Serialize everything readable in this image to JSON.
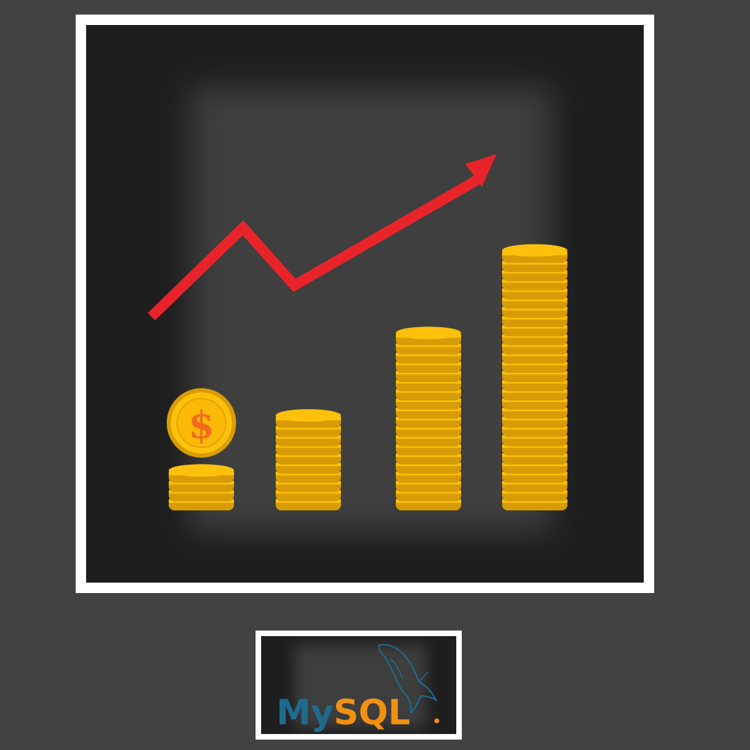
{
  "illustration": {
    "stacks": [
      {
        "coins": 4,
        "standing_coin_symbol": "$"
      },
      {
        "coins": 10
      },
      {
        "coins": 19
      },
      {
        "coins": 28
      }
    ],
    "colors": {
      "background": "#424242",
      "frame": "#ffffff",
      "panel": "#1e1e1e",
      "coin_face": "#fec10b",
      "coin_rim": "#d79c05",
      "trend_arrow": "#e8242a"
    },
    "icons": [
      "trend-arrow-icon",
      "coin-stack-icon",
      "dollar-coin-icon"
    ]
  },
  "logo": {
    "brand": "MySQL",
    "parts": {
      "my": "My",
      "sql": "SQL"
    },
    "colors": {
      "my": "#1f6b8e",
      "sql": "#f29111"
    },
    "icon": "dolphin-icon"
  }
}
